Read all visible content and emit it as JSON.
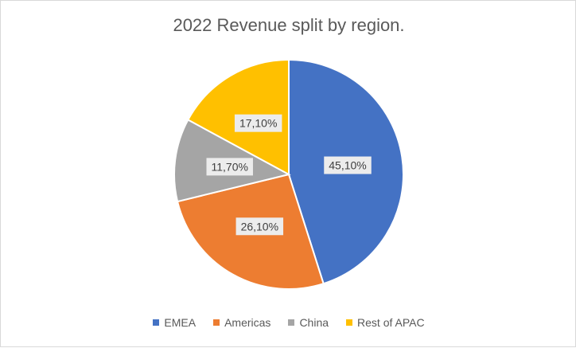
{
  "chart_data": {
    "type": "pie",
    "title": "2022 Revenue split by region.",
    "categories": [
      "EMEA",
      "Americas",
      "China",
      "Rest of APAC"
    ],
    "values": [
      45.1,
      26.1,
      11.7,
      17.1
    ],
    "data_labels": [
      "45,10%",
      "26,10%",
      "11,70%",
      "17,10%"
    ],
    "colors": [
      "#4472c4",
      "#ed7d31",
      "#a5a5a5",
      "#ffc000"
    ],
    "legend_position": "bottom"
  }
}
